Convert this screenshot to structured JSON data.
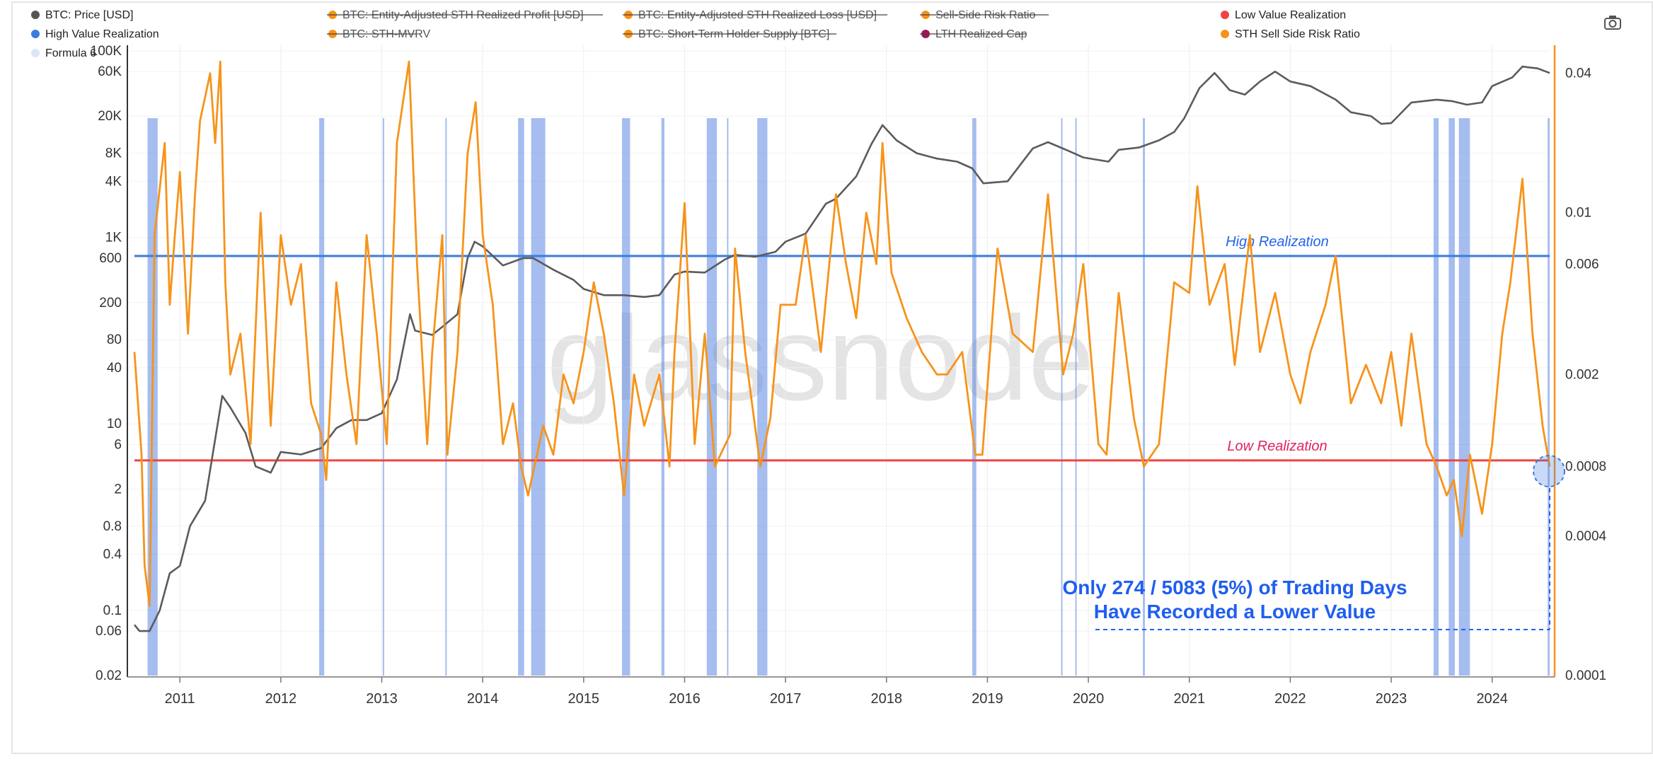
{
  "chart_data": {
    "type": "line",
    "title": "",
    "xlabel": "",
    "ylabel": "",
    "legend": {
      "placement": "top",
      "items": [
        {
          "label": "BTC: Price [USD]",
          "color": "#555555",
          "struck": false
        },
        {
          "label": "BTC: Entity-Adjusted STH Realized Profit [USD]",
          "color": "#f7931a",
          "struck": true
        },
        {
          "label": "BTC: Entity-Adjusted STH Realized Loss [USD]",
          "color": "#f7931a",
          "struck": true
        },
        {
          "label": "Sell-Side Risk Ratio",
          "color": "#f7931a",
          "struck": true
        },
        {
          "label": "Low Value Realization",
          "color": "#ef4444",
          "struck": false
        },
        {
          "label": "High Value Realization",
          "color": "#3b7be0",
          "struck": false
        },
        {
          "label": "BTC: STH-MVRV",
          "color": "#f7931a",
          "struck": true
        },
        {
          "label": "BTC: Short-Term Holder Supply [BTC]",
          "color": "#f7931a",
          "struck": true
        },
        {
          "label": "LTH Realized Cap",
          "color": "#a3125a",
          "struck": true
        },
        {
          "label": "STH Sell Side Risk Ratio",
          "color": "#f7931a",
          "struck": false
        },
        {
          "label": "Formula 6",
          "color": "#dbe6fb",
          "struck": false
        }
      ]
    },
    "x_ticks": [
      "2011",
      "2012",
      "2013",
      "2014",
      "2015",
      "2016",
      "2017",
      "2018",
      "2019",
      "2020",
      "2021",
      "2022",
      "2023",
      "2024"
    ],
    "x_range": [
      2010.55,
      2024.57
    ],
    "y_left": {
      "scale": "log",
      "range": [
        0.02,
        100000
      ],
      "ticks": [
        "100K",
        "60K",
        "20K",
        "8K",
        "4K",
        "1K",
        "600",
        "200",
        "80",
        "40",
        "10",
        "6",
        "2",
        "0.8",
        "0.4",
        "0.1",
        "0.06",
        "0.02"
      ],
      "tick_values": [
        100000,
        60000,
        20000,
        8000,
        4000,
        1000,
        600,
        200,
        80,
        40,
        10,
        6,
        2,
        0.8,
        0.4,
        0.1,
        0.06,
        0.02
      ]
    },
    "y_right": {
      "scale": "log",
      "range": [
        0.0001,
        0.05
      ],
      "ticks": [
        "0.04",
        "0.01",
        "0.006",
        "0.002",
        "0.0008",
        "0.0004",
        "0.0001"
      ],
      "tick_values": [
        0.04,
        0.01,
        0.006,
        0.002,
        0.0008,
        0.0004,
        0.0001
      ]
    },
    "series": [
      {
        "name": "BTC: Price [USD]",
        "axis": "left",
        "color": "#5b5b5b",
        "x": [
          2010.55,
          2010.6,
          2010.7,
          2010.8,
          2010.9,
          2011.0,
          2011.1,
          2011.25,
          2011.42,
          2011.5,
          2011.65,
          2011.75,
          2011.9,
          2012.0,
          2012.2,
          2012.4,
          2012.55,
          2012.7,
          2012.85,
          2013.0,
          2013.15,
          2013.28,
          2013.33,
          2013.5,
          2013.6,
          2013.75,
          2013.85,
          2013.92,
          2014.0,
          2014.2,
          2014.4,
          2014.5,
          2014.7,
          2014.9,
          2015.0,
          2015.2,
          2015.4,
          2015.6,
          2015.75,
          2015.9,
          2016.0,
          2016.2,
          2016.4,
          2016.5,
          2016.7,
          2016.9,
          2017.0,
          2017.2,
          2017.4,
          2017.5,
          2017.7,
          2017.85,
          2017.96,
          2018.1,
          2018.3,
          2018.5,
          2018.7,
          2018.85,
          2018.96,
          2019.2,
          2019.45,
          2019.6,
          2019.8,
          2019.95,
          2020.2,
          2020.3,
          2020.5,
          2020.7,
          2020.85,
          2020.95,
          2021.1,
          2021.25,
          2021.4,
          2021.55,
          2021.7,
          2021.85,
          2022.0,
          2022.2,
          2022.45,
          2022.6,
          2022.8,
          2022.9,
          2023.0,
          2023.2,
          2023.45,
          2023.6,
          2023.75,
          2023.9,
          2024.0,
          2024.2,
          2024.3,
          2024.45,
          2024.57
        ],
        "y": [
          0.07,
          0.06,
          0.06,
          0.1,
          0.25,
          0.3,
          0.8,
          1.5,
          20,
          15,
          8,
          3.5,
          3,
          5,
          4.7,
          5.5,
          9,
          11,
          11,
          13,
          30,
          150,
          100,
          90,
          110,
          150,
          600,
          900,
          800,
          500,
          600,
          600,
          450,
          350,
          280,
          240,
          240,
          230,
          240,
          400,
          430,
          420,
          580,
          650,
          620,
          700,
          900,
          1100,
          2300,
          2600,
          4500,
          10000,
          16000,
          11000,
          8000,
          7000,
          6500,
          5500,
          3800,
          4000,
          9000,
          10500,
          8500,
          7200,
          6500,
          8700,
          9200,
          11000,
          13500,
          19000,
          40000,
          58000,
          38000,
          34000,
          47000,
          60000,
          47000,
          42000,
          30000,
          22000,
          20000,
          16500,
          16800,
          28000,
          30000,
          29000,
          26500,
          28000,
          42000,
          52000,
          68000,
          65000,
          58000
        ]
      },
      {
        "name": "STH Sell Side Risk Ratio",
        "axis": "right",
        "color": "#f7931a",
        "x": [
          2010.55,
          2010.62,
          2010.65,
          2010.7,
          2010.75,
          2010.85,
          2010.9,
          2010.95,
          2011.0,
          2011.08,
          2011.15,
          2011.2,
          2011.3,
          2011.35,
          2011.4,
          2011.45,
          2011.5,
          2011.6,
          2011.7,
          2011.8,
          2011.9,
          2012.0,
          2012.1,
          2012.2,
          2012.3,
          2012.4,
          2012.45,
          2012.55,
          2012.65,
          2012.75,
          2012.85,
          2012.95,
          2013.05,
          2013.15,
          2013.27,
          2013.35,
          2013.45,
          2013.5,
          2013.6,
          2013.65,
          2013.75,
          2013.85,
          2013.93,
          2014.0,
          2014.1,
          2014.2,
          2014.3,
          2014.38,
          2014.45,
          2014.6,
          2014.7,
          2014.8,
          2014.9,
          2015.0,
          2015.1,
          2015.2,
          2015.3,
          2015.4,
          2015.5,
          2015.6,
          2015.75,
          2015.85,
          2015.9,
          2016.0,
          2016.1,
          2016.2,
          2016.3,
          2016.45,
          2016.5,
          2016.6,
          2016.75,
          2016.85,
          2016.95,
          2017.1,
          2017.2,
          2017.35,
          2017.5,
          2017.6,
          2017.7,
          2017.8,
          2017.9,
          2017.96,
          2018.05,
          2018.2,
          2018.35,
          2018.5,
          2018.6,
          2018.75,
          2018.88,
          2018.95,
          2019.1,
          2019.25,
          2019.45,
          2019.6,
          2019.75,
          2019.85,
          2019.95,
          2020.1,
          2020.18,
          2020.3,
          2020.45,
          2020.55,
          2020.7,
          2020.85,
          2021.0,
          2021.08,
          2021.2,
          2021.35,
          2021.45,
          2021.6,
          2021.7,
          2021.85,
          2022.0,
          2022.1,
          2022.2,
          2022.35,
          2022.45,
          2022.6,
          2022.75,
          2022.9,
          2023.0,
          2023.1,
          2023.2,
          2023.35,
          2023.45,
          2023.55,
          2023.62,
          2023.7,
          2023.78,
          2023.9,
          2024.0,
          2024.1,
          2024.18,
          2024.3,
          2024.4,
          2024.5,
          2024.57
        ],
        "y": [
          0.0025,
          0.0009,
          0.0003,
          0.0002,
          0.008,
          0.02,
          0.004,
          0.008,
          0.015,
          0.003,
          0.012,
          0.025,
          0.04,
          0.02,
          0.045,
          0.005,
          0.002,
          0.003,
          0.001,
          0.01,
          0.0012,
          0.008,
          0.004,
          0.006,
          0.0015,
          0.0011,
          0.0007,
          0.005,
          0.002,
          0.001,
          0.008,
          0.003,
          0.001,
          0.02,
          0.045,
          0.006,
          0.001,
          0.0025,
          0.008,
          0.0009,
          0.0025,
          0.018,
          0.03,
          0.008,
          0.004,
          0.001,
          0.0015,
          0.0008,
          0.0006,
          0.0012,
          0.0009,
          0.002,
          0.0015,
          0.0025,
          0.005,
          0.003,
          0.0015,
          0.0006,
          0.002,
          0.0012,
          0.002,
          0.0008,
          0.0025,
          0.011,
          0.001,
          0.003,
          0.0008,
          0.0011,
          0.007,
          0.0025,
          0.0008,
          0.0013,
          0.004,
          0.004,
          0.008,
          0.0025,
          0.012,
          0.006,
          0.0035,
          0.01,
          0.006,
          0.02,
          0.0055,
          0.0035,
          0.0025,
          0.002,
          0.002,
          0.0025,
          0.0009,
          0.0009,
          0.007,
          0.003,
          0.0025,
          0.012,
          0.002,
          0.003,
          0.006,
          0.001,
          0.0009,
          0.0045,
          0.0013,
          0.0008,
          0.001,
          0.005,
          0.0045,
          0.013,
          0.004,
          0.006,
          0.0022,
          0.008,
          0.0025,
          0.0045,
          0.002,
          0.0015,
          0.0025,
          0.004,
          0.0065,
          0.0015,
          0.0022,
          0.0015,
          0.0025,
          0.0012,
          0.003,
          0.001,
          0.0008,
          0.0006,
          0.0007,
          0.0004,
          0.0009,
          0.0005,
          0.001,
          0.003,
          0.005,
          0.014,
          0.003,
          0.0012,
          0.0008
        ]
      }
    ],
    "reference_lines": [
      {
        "label": "High Realization",
        "axis": "right",
        "value": 0.0065,
        "color": "#3b7be0"
      },
      {
        "label": "Low Realization",
        "axis": "right",
        "value": 0.00085,
        "color": "#ef4444"
      }
    ],
    "shaded_periods": [
      [
        2010.68,
        2010.78
      ],
      [
        2012.38,
        2012.43
      ],
      [
        2013.01,
        2013.02
      ],
      [
        2013.63,
        2013.64
      ],
      [
        2014.35,
        2014.41
      ],
      [
        2014.48,
        2014.62
      ],
      [
        2015.38,
        2015.46
      ],
      [
        2015.77,
        2015.8
      ],
      [
        2016.22,
        2016.32
      ],
      [
        2016.42,
        2016.43
      ],
      [
        2016.72,
        2016.82
      ],
      [
        2018.85,
        2018.89
      ],
      [
        2019.73,
        2019.74
      ],
      [
        2019.87,
        2019.88
      ],
      [
        2020.54,
        2020.56
      ],
      [
        2023.42,
        2023.47
      ],
      [
        2023.57,
        2023.63
      ],
      [
        2023.67,
        2023.78
      ],
      [
        2024.55,
        2024.57
      ]
    ],
    "annotation": {
      "line1": "Only 274 / 5083 (5%) of Trading Days",
      "line2": "Have Recorded a Lower Value"
    },
    "watermark": "glassnode"
  }
}
